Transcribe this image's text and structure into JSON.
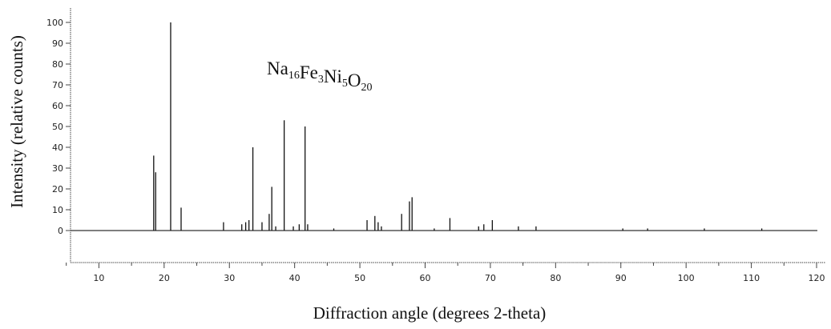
{
  "chart_data": {
    "type": "bar",
    "annotation": {
      "parts": [
        {
          "text": "Na",
          "sub": "16"
        },
        {
          "text": "Fe",
          "sub": "3"
        },
        {
          "text": "Ni",
          "sub": "5"
        },
        {
          "text": "O",
          "sub": "20"
        }
      ]
    },
    "xlabel": "Diffraction angle (degrees 2-theta)",
    "ylabel": "Intensity (relative counts)",
    "xlim": [
      0,
      122
    ],
    "ylim": [
      -15,
      104
    ],
    "x_ticks": [
      10,
      20,
      30,
      40,
      50,
      60,
      70,
      80,
      90,
      100,
      110,
      120
    ],
    "y_ticks": [
      0,
      10,
      20,
      30,
      40,
      50,
      60,
      70,
      80,
      90,
      100
    ],
    "grid": false,
    "baseline": 0,
    "peaks": [
      {
        "x": 18.4,
        "y": 36
      },
      {
        "x": 18.7,
        "y": 28
      },
      {
        "x": 21.0,
        "y": 100
      },
      {
        "x": 22.6,
        "y": 11
      },
      {
        "x": 29.1,
        "y": 4
      },
      {
        "x": 31.9,
        "y": 3
      },
      {
        "x": 32.5,
        "y": 4
      },
      {
        "x": 33.0,
        "y": 5
      },
      {
        "x": 33.6,
        "y": 40
      },
      {
        "x": 35.0,
        "y": 4
      },
      {
        "x": 36.1,
        "y": 8
      },
      {
        "x": 36.5,
        "y": 21
      },
      {
        "x": 37.1,
        "y": 2
      },
      {
        "x": 38.4,
        "y": 53
      },
      {
        "x": 39.8,
        "y": 2
      },
      {
        "x": 40.7,
        "y": 3
      },
      {
        "x": 41.6,
        "y": 50
      },
      {
        "x": 42.0,
        "y": 3
      },
      {
        "x": 46.0,
        "y": 1
      },
      {
        "x": 51.1,
        "y": 5
      },
      {
        "x": 52.3,
        "y": 7
      },
      {
        "x": 52.8,
        "y": 4
      },
      {
        "x": 53.3,
        "y": 2
      },
      {
        "x": 56.4,
        "y": 8
      },
      {
        "x": 57.6,
        "y": 14
      },
      {
        "x": 58.0,
        "y": 16
      },
      {
        "x": 61.4,
        "y": 1
      },
      {
        "x": 63.8,
        "y": 6
      },
      {
        "x": 68.2,
        "y": 2
      },
      {
        "x": 69.0,
        "y": 3
      },
      {
        "x": 70.3,
        "y": 5
      },
      {
        "x": 74.3,
        "y": 2
      },
      {
        "x": 77.0,
        "y": 2
      },
      {
        "x": 90.3,
        "y": 1
      },
      {
        "x": 94.1,
        "y": 1
      },
      {
        "x": 102.8,
        "y": 1
      },
      {
        "x": 111.6,
        "y": 1
      }
    ]
  }
}
